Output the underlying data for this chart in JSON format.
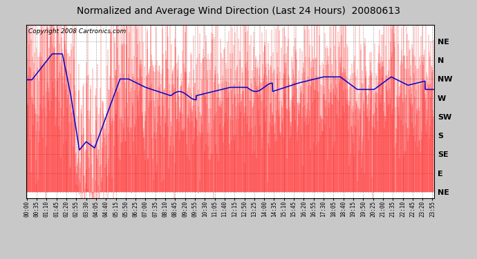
{
  "title": "Normalized and Average Wind Direction (Last 24 Hours)  20080613",
  "copyright_text": "Copyright 2008 Cartronics.com",
  "ytick_labels": [
    "NE",
    "N",
    "NW",
    "W",
    "SW",
    "S",
    "SE",
    "E",
    "NE"
  ],
  "ytick_values": [
    360,
    315,
    270,
    225,
    180,
    135,
    90,
    45,
    0
  ],
  "ylim": [
    -15,
    400
  ],
  "background_color": "#c8c8c8",
  "plot_bg_color": "#ffffff",
  "red_color": "#ff0000",
  "blue_color": "#0000cc",
  "grid_color": "#999999",
  "title_fontsize": 10,
  "copyright_fontsize": 6.5,
  "xtick_fontsize": 5.5,
  "ytick_fontsize": 8,
  "tick_interval_minutes": 35,
  "data_interval_minutes": 1
}
